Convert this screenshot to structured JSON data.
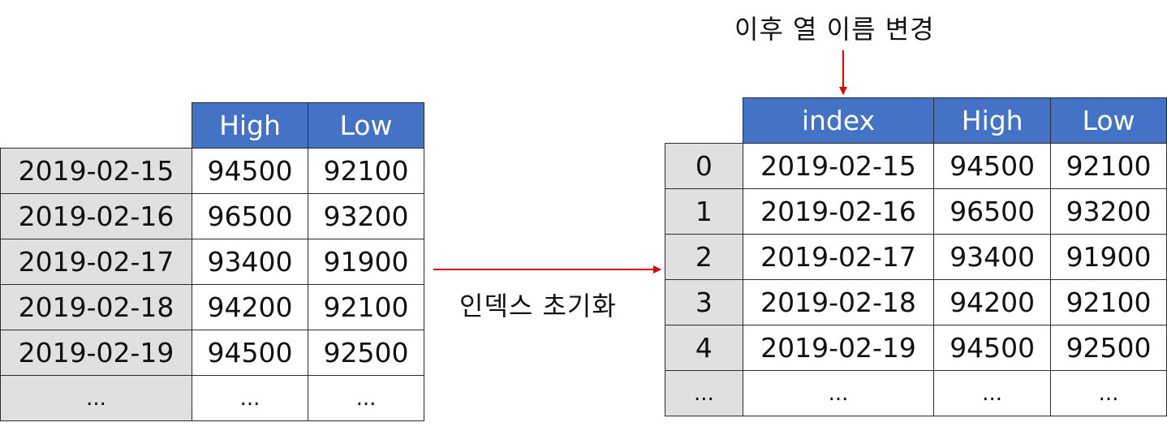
{
  "left_table": {
    "headers": [
      "High",
      "Low"
    ],
    "rows": [
      {
        "index": "2019-02-15",
        "high": "94500",
        "low": "92100"
      },
      {
        "index": "2019-02-16",
        "high": "96500",
        "low": "93200"
      },
      {
        "index": "2019-02-17",
        "high": "93400",
        "low": "91900"
      },
      {
        "index": "2019-02-18",
        "high": "94200",
        "low": "92100"
      },
      {
        "index": "2019-02-19",
        "high": "94500",
        "low": "92500"
      },
      {
        "index": "...",
        "high": "...",
        "low": "..."
      }
    ]
  },
  "right_table": {
    "headers": [
      "index",
      "High",
      "Low"
    ],
    "rows": [
      {
        "index": "0",
        "date": "2019-02-15",
        "high": "94500",
        "low": "92100"
      },
      {
        "index": "1",
        "date": "2019-02-16",
        "high": "96500",
        "low": "93200"
      },
      {
        "index": "2",
        "date": "2019-02-17",
        "high": "93400",
        "low": "91900"
      },
      {
        "index": "3",
        "date": "2019-02-18",
        "high": "94200",
        "low": "92100"
      },
      {
        "index": "4",
        "date": "2019-02-19",
        "high": "94500",
        "low": "92500"
      },
      {
        "index": "...",
        "date": "...",
        "high": "...",
        "low": "..."
      }
    ]
  },
  "captions": {
    "reset_index": "인덱스 초기화",
    "rename_column": "이후 열 이름 변경"
  },
  "colors": {
    "header_fill": "#4472c4",
    "index_fill": "#e0e0e0",
    "arrow": "#e00000"
  }
}
